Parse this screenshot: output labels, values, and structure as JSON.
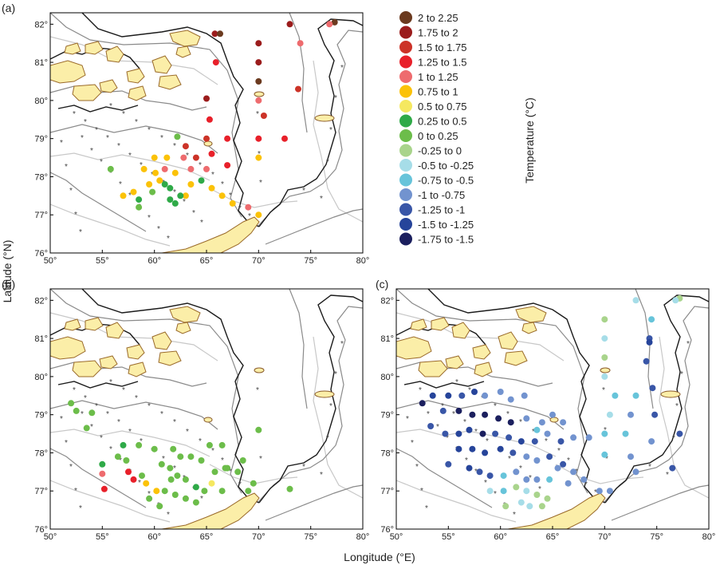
{
  "figure": {
    "y_label": "Latitude (°N)",
    "x_label": "Longitude (°E)",
    "legend_title": "Temperature (°C)",
    "lon_ticks": [
      "50°",
      "55°",
      "60°",
      "65°",
      "70°",
      "75°",
      "80°"
    ],
    "lat_ticks": [
      "76°",
      "77°",
      "78°",
      "79°",
      "80°",
      "81°",
      "82°"
    ]
  },
  "legend": [
    {
      "label": "2  to  2.25",
      "color": "#6b3a1f"
    },
    {
      "label": "1.75  to  2",
      "color": "#9b1c1c"
    },
    {
      "label": "1.5  to  1.75",
      "color": "#cc3328"
    },
    {
      "label": "1.25  to  1.5",
      "color": "#e8202a"
    },
    {
      "label": "1  to  1.25",
      "color": "#ee6b6e"
    },
    {
      "label": "0.75  to  1",
      "color": "#fbc208"
    },
    {
      "label": "0.5  to  0.75",
      "color": "#f5e860"
    },
    {
      "label": "0.25  to  0.5",
      "color": "#2faa48"
    },
    {
      "label": "0  to  0.25",
      "color": "#6cbd4a"
    },
    {
      "label": "-0.25  to  0",
      "color": "#a9d48c"
    },
    {
      "label": "-0.5  to  -0.25",
      "color": "#a6dde8"
    },
    {
      "label": "-0.75  to  -0.5",
      "color": "#67c4da"
    },
    {
      "label": "-1  to  -0.75",
      "color": "#7293cf"
    },
    {
      "label": "-1.25  to  -1",
      "color": "#3956a7"
    },
    {
      "label": "-1.5  to  -1.25",
      "color": "#26449a"
    },
    {
      "label": "-1.75  to  -1.5",
      "color": "#1b1f5e"
    }
  ],
  "chart_data": [
    {
      "type": "scatter",
      "panel": "(a)",
      "xlabel": "",
      "ylabel": "",
      "xlim": [
        50,
        80
      ],
      "ylim": [
        76,
        82.3
      ],
      "points": [
        [
          77.3,
          82.05,
          0
        ],
        [
          76.8,
          82.0,
          4
        ],
        [
          73.0,
          82.0,
          1
        ],
        [
          65.8,
          81.75,
          1
        ],
        [
          66.3,
          81.75,
          0
        ],
        [
          70.0,
          81.5,
          1
        ],
        [
          74.0,
          81.5,
          4
        ],
        [
          65.9,
          81.0,
          3
        ],
        [
          70.0,
          81.0,
          1
        ],
        [
          70.0,
          80.5,
          0
        ],
        [
          65.0,
          80.05,
          1
        ],
        [
          70.0,
          80.0,
          4
        ],
        [
          73.8,
          80.3,
          2
        ],
        [
          70.5,
          79.6,
          2
        ],
        [
          65.3,
          79.5,
          3
        ],
        [
          62.2,
          79.05,
          8
        ],
        [
          63.0,
          78.8,
          2
        ],
        [
          65.0,
          79.0,
          2
        ],
        [
          67.0,
          79.0,
          3
        ],
        [
          70.0,
          79.0,
          3
        ],
        [
          72.5,
          79.0,
          3
        ],
        [
          60.0,
          78.5,
          5
        ],
        [
          61.2,
          78.5,
          5
        ],
        [
          62.8,
          78.5,
          4
        ],
        [
          64.0,
          78.5,
          2
        ],
        [
          65.5,
          78.6,
          3
        ],
        [
          70.0,
          78.5,
          5
        ],
        [
          59.0,
          78.2,
          5
        ],
        [
          60.1,
          78.1,
          5
        ],
        [
          61.0,
          78.2,
          4
        ],
        [
          62.0,
          78.1,
          5
        ],
        [
          63.5,
          78.2,
          4
        ],
        [
          65.0,
          78.2,
          4
        ],
        [
          67.0,
          78.3,
          3
        ],
        [
          55.8,
          78.2,
          8
        ],
        [
          59.5,
          77.8,
          5
        ],
        [
          60.5,
          77.9,
          5
        ],
        [
          61.5,
          77.7,
          7
        ],
        [
          63.5,
          77.8,
          5
        ],
        [
          64.5,
          77.9,
          7
        ],
        [
          65.5,
          77.7,
          5
        ],
        [
          57.0,
          77.5,
          5
        ],
        [
          58.0,
          77.6,
          5
        ],
        [
          58.5,
          77.4,
          7
        ],
        [
          59.8,
          77.6,
          8
        ],
        [
          61.5,
          77.4,
          7
        ],
        [
          62.0,
          77.3,
          7
        ],
        [
          63.0,
          77.5,
          5
        ],
        [
          66.5,
          77.5,
          5
        ],
        [
          67.5,
          77.3,
          5
        ],
        [
          69.0,
          77.2,
          4
        ],
        [
          70.0,
          77.0,
          5
        ],
        [
          61.0,
          77.8,
          7
        ],
        [
          62.5,
          77.5,
          7
        ],
        [
          58.5,
          77.2,
          8
        ]
      ]
    },
    {
      "type": "scatter",
      "panel": "(b)",
      "xlabel": "",
      "ylabel": "",
      "xlim": [
        50,
        80
      ],
      "ylim": [
        76,
        82.3
      ],
      "points": [
        [
          52.0,
          79.3,
          8
        ],
        [
          52.5,
          79.1,
          8
        ],
        [
          53.5,
          78.65,
          8
        ],
        [
          54.0,
          79.05,
          8
        ],
        [
          55.0,
          77.7,
          7
        ],
        [
          55.0,
          77.45,
          4
        ],
        [
          55.2,
          77.05,
          3
        ],
        [
          57.0,
          78.2,
          7
        ],
        [
          58.5,
          78.2,
          8
        ],
        [
          57.5,
          77.5,
          3
        ],
        [
          58.0,
          77.3,
          3
        ],
        [
          57.3,
          77.8,
          8
        ],
        [
          60.0,
          78.1,
          8
        ],
        [
          59.2,
          77.2,
          5
        ],
        [
          60.2,
          77.0,
          5
        ],
        [
          61.8,
          78.1,
          8
        ],
        [
          62.5,
          77.9,
          8
        ],
        [
          63.5,
          77.9,
          8
        ],
        [
          64.5,
          77.8,
          8
        ],
        [
          65.3,
          78.2,
          8
        ],
        [
          66.5,
          78.2,
          8
        ],
        [
          67.0,
          77.6,
          8
        ],
        [
          68.0,
          77.5,
          8
        ],
        [
          69.0,
          77.0,
          8
        ],
        [
          70.0,
          78.6,
          8
        ],
        [
          73.0,
          77.05,
          8
        ],
        [
          60.7,
          77.7,
          8
        ],
        [
          61.5,
          77.6,
          8
        ],
        [
          62.2,
          77.4,
          8
        ],
        [
          63.0,
          77.3,
          8
        ],
        [
          64.0,
          77.1,
          7
        ],
        [
          64.8,
          77.0,
          8
        ],
        [
          65.5,
          77.2,
          6
        ],
        [
          66.5,
          77.0,
          8
        ],
        [
          61.0,
          77.0,
          8
        ],
        [
          62.0,
          76.9,
          8
        ],
        [
          63.0,
          76.8,
          8
        ],
        [
          64.0,
          76.7,
          8
        ],
        [
          59.5,
          76.8,
          8
        ],
        [
          58.8,
          77.4,
          8
        ],
        [
          56.5,
          77.9,
          8
        ],
        [
          65.8,
          77.5,
          8
        ],
        [
          68.5,
          77.8,
          8
        ],
        [
          66.8,
          77.6,
          8
        ],
        [
          69.5,
          77.2,
          8
        ],
        [
          60.5,
          76.6,
          8
        ],
        [
          61.6,
          77.3,
          8
        ]
      ]
    },
    {
      "type": "scatter",
      "panel": "(c)",
      "xlabel": "",
      "ylabel": "",
      "xlim": [
        50,
        80
      ],
      "ylim": [
        76,
        82.3
      ],
      "points": [
        [
          77.2,
          82.05,
          9
        ],
        [
          76.8,
          82.0,
          10
        ],
        [
          73.0,
          82.0,
          10
        ],
        [
          74.5,
          81.5,
          11
        ],
        [
          70.0,
          81.5,
          9
        ],
        [
          70.0,
          81.0,
          10
        ],
        [
          74.3,
          81.0,
          13
        ],
        [
          74.3,
          80.9,
          14
        ],
        [
          70.0,
          80.5,
          9
        ],
        [
          74.0,
          80.4,
          13
        ],
        [
          70.0,
          80.0,
          10
        ],
        [
          74.6,
          79.7,
          13
        ],
        [
          71.0,
          79.5,
          11
        ],
        [
          73.0,
          79.5,
          11
        ],
        [
          70.5,
          79.0,
          10
        ],
        [
          72.5,
          79.0,
          12
        ],
        [
          74.8,
          79.0,
          13
        ],
        [
          70.0,
          78.5,
          11
        ],
        [
          72.0,
          78.5,
          11
        ],
        [
          74.5,
          78.3,
          12
        ],
        [
          52.5,
          79.3,
          15
        ],
        [
          53.5,
          79.5,
          14
        ],
        [
          55.0,
          79.5,
          14
        ],
        [
          56.3,
          79.5,
          13
        ],
        [
          57.5,
          79.6,
          14
        ],
        [
          58.5,
          79.5,
          12
        ],
        [
          60.0,
          79.6,
          12
        ],
        [
          61.0,
          79.4,
          12
        ],
        [
          62.3,
          79.5,
          12
        ],
        [
          65.0,
          79.0,
          12
        ],
        [
          54.5,
          79.1,
          13
        ],
        [
          56.0,
          79.1,
          15
        ],
        [
          57.3,
          79.0,
          15
        ],
        [
          58.5,
          79.0,
          15
        ],
        [
          59.8,
          78.9,
          15
        ],
        [
          61.0,
          78.8,
          15
        ],
        [
          62.5,
          78.9,
          12
        ],
        [
          63.5,
          78.6,
          11
        ],
        [
          64.0,
          78.8,
          12
        ],
        [
          53.3,
          78.7,
          13
        ],
        [
          54.7,
          78.5,
          13
        ],
        [
          56.0,
          78.5,
          14
        ],
        [
          57.0,
          78.6,
          14
        ],
        [
          58.3,
          78.5,
          15
        ],
        [
          59.5,
          78.5,
          13
        ],
        [
          60.8,
          78.4,
          13
        ],
        [
          62.0,
          78.3,
          14
        ],
        [
          63.3,
          78.3,
          13
        ],
        [
          64.5,
          78.5,
          12
        ],
        [
          65.8,
          78.3,
          13
        ],
        [
          66.0,
          78.8,
          12
        ],
        [
          67.0,
          78.4,
          12
        ],
        [
          68.5,
          78.4,
          12
        ],
        [
          70.0,
          77.95,
          11
        ],
        [
          56.0,
          78.1,
          14
        ],
        [
          57.3,
          78.1,
          14
        ],
        [
          58.5,
          78.0,
          14
        ],
        [
          60.0,
          78.1,
          14
        ],
        [
          61.2,
          78.0,
          13
        ],
        [
          62.5,
          77.9,
          12
        ],
        [
          63.5,
          77.8,
          12
        ],
        [
          64.7,
          77.9,
          13
        ],
        [
          66.0,
          77.7,
          13
        ],
        [
          67.0,
          77.5,
          12
        ],
        [
          55.0,
          77.7,
          13
        ],
        [
          57.0,
          77.6,
          14
        ],
        [
          58.0,
          77.5,
          13
        ],
        [
          59.0,
          77.4,
          13
        ],
        [
          60.3,
          77.4,
          11
        ],
        [
          61.5,
          77.5,
          12
        ],
        [
          62.5,
          77.3,
          12
        ],
        [
          63.5,
          77.3,
          12
        ],
        [
          64.7,
          77.3,
          11
        ],
        [
          65.5,
          77.6,
          12
        ],
        [
          66.5,
          77.2,
          12
        ],
        [
          68.0,
          77.3,
          12
        ],
        [
          69.5,
          77.0,
          12
        ],
        [
          59.0,
          77.0,
          10
        ],
        [
          60.3,
          77.0,
          11
        ],
        [
          61.5,
          77.1,
          9
        ],
        [
          62.5,
          77.0,
          10
        ],
        [
          63.5,
          76.9,
          9
        ],
        [
          64.5,
          76.8,
          9
        ],
        [
          60.5,
          76.6,
          9
        ],
        [
          62.0,
          76.7,
          10
        ],
        [
          62.8,
          76.6,
          10
        ],
        [
          64.0,
          76.6,
          9
        ],
        [
          72.5,
          77.9,
          12
        ],
        [
          73.0,
          77.5,
          12
        ],
        [
          76.5,
          77.6,
          13
        ],
        [
          77.2,
          78.5,
          13
        ],
        [
          70.5,
          77.0,
          12
        ]
      ]
    }
  ]
}
